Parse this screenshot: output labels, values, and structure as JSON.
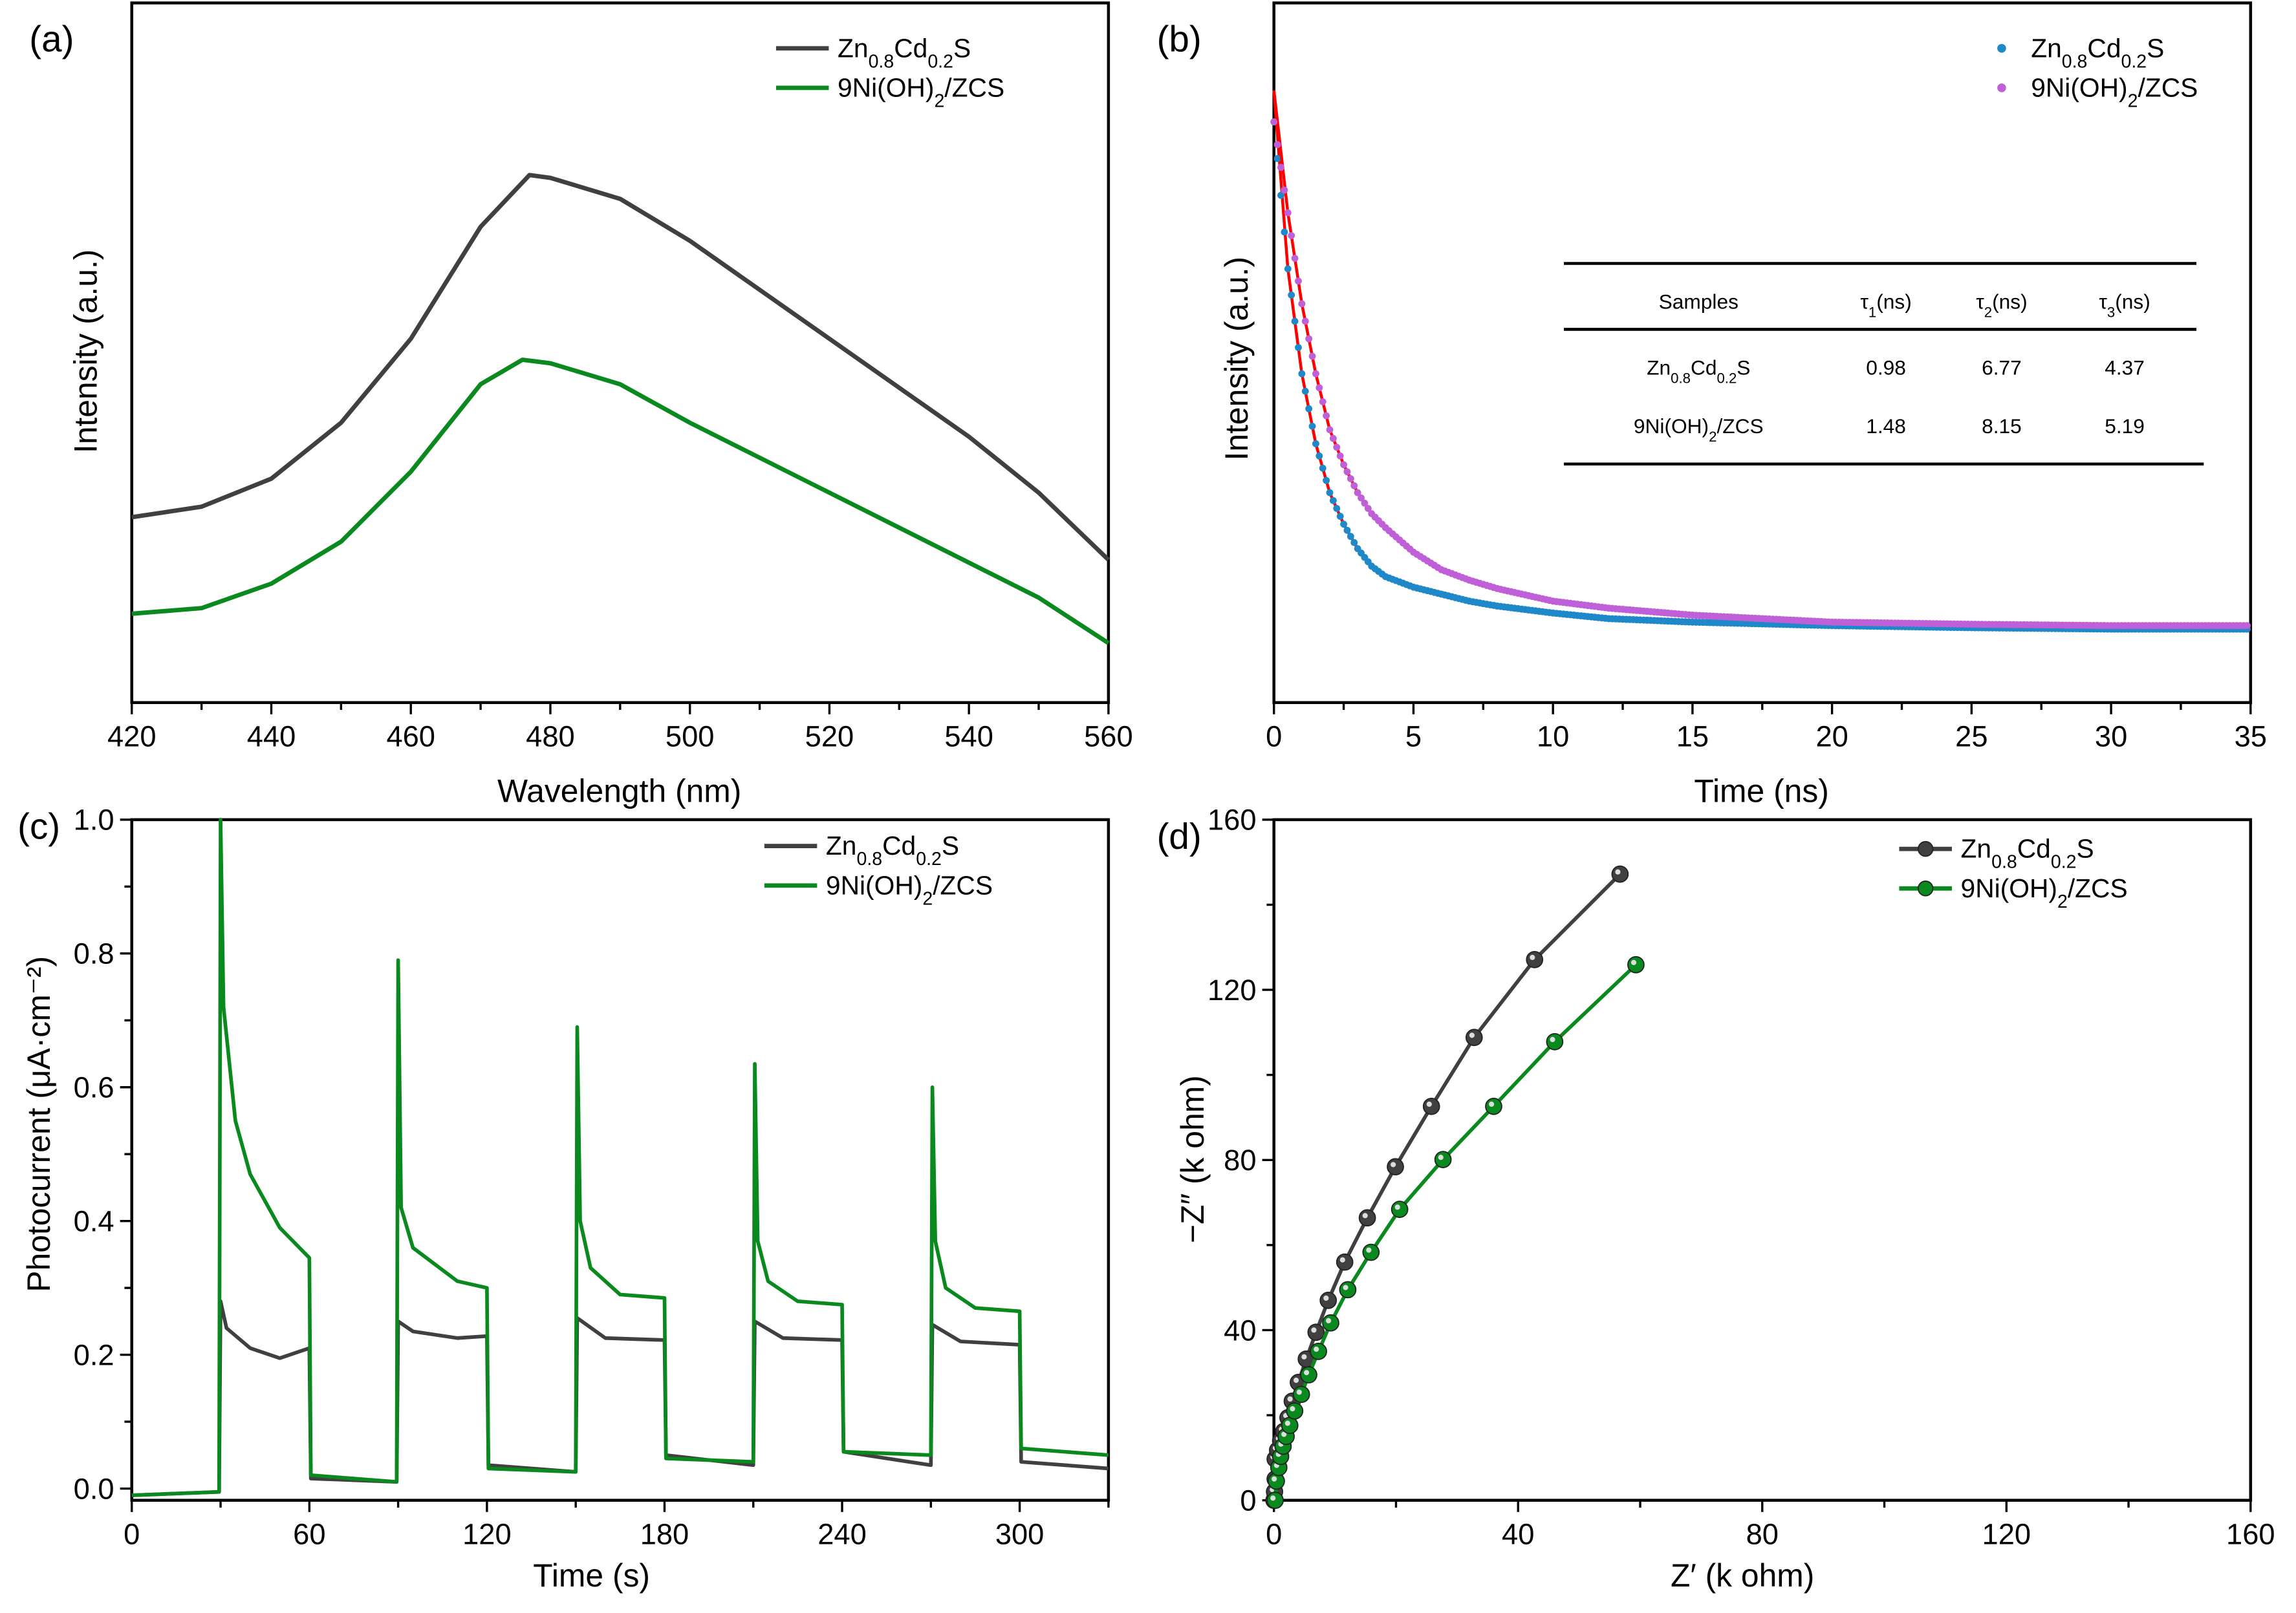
{
  "colors": {
    "zcs": "#404040",
    "ni": "#0a8a1e",
    "zcs_b": "#1e88c8",
    "ni_b": "#c060d8",
    "fit": "#ff0000"
  },
  "series_labels": {
    "zcs": [
      {
        "t": "Zn"
      },
      {
        "t": "0.8",
        "sub": true
      },
      {
        "t": "Cd"
      },
      {
        "t": "0.2",
        "sub": true
      },
      {
        "t": "S"
      }
    ],
    "ni": [
      {
        "t": "9Ni(OH)"
      },
      {
        "t": "2",
        "sub": true
      },
      {
        "t": "/ZCS"
      }
    ]
  },
  "chart_data": [
    {
      "panel": "(a)",
      "type": "line",
      "xlabel": "Wavelength (nm)",
      "ylabel": "Intensity (a.u.)",
      "xlim": [
        420,
        560
      ],
      "ylim": [
        0,
        1
      ],
      "xticks": [
        "420",
        "440",
        "460",
        "480",
        "500",
        "520",
        "540",
        "560"
      ],
      "xtick_values": [
        420,
        440,
        460,
        480,
        500,
        520,
        540,
        560
      ],
      "legend": "top-right",
      "series": [
        {
          "key": "zcs",
          "name": "Zn0.8Cd0.2S",
          "x": [
            420,
            430,
            440,
            450,
            460,
            470,
            477,
            480,
            490,
            500,
            510,
            520,
            530,
            540,
            550,
            560
          ],
          "y": [
            0.265,
            0.28,
            0.32,
            0.4,
            0.52,
            0.68,
            0.754,
            0.75,
            0.72,
            0.66,
            0.59,
            0.52,
            0.45,
            0.38,
            0.3,
            0.204
          ]
        },
        {
          "key": "ni",
          "name": "9Ni(OH)2/ZCS",
          "x": [
            420,
            430,
            440,
            450,
            460,
            470,
            476,
            480,
            490,
            500,
            510,
            520,
            530,
            540,
            550,
            560
          ],
          "y": [
            0.127,
            0.135,
            0.17,
            0.23,
            0.33,
            0.455,
            0.49,
            0.485,
            0.455,
            0.4,
            0.35,
            0.3,
            0.25,
            0.2,
            0.15,
            0.085
          ]
        }
      ]
    },
    {
      "panel": "(b)",
      "type": "scatter",
      "xlabel": "Time (ns)",
      "ylabel": "Intensity (a.u.)",
      "xlim": [
        0,
        35
      ],
      "ylim": [
        0,
        1
      ],
      "xticks": [
        "0",
        "5",
        "10",
        "15",
        "20",
        "25",
        "30",
        "35"
      ],
      "xtick_values": [
        0,
        5,
        10,
        15,
        20,
        25,
        30,
        35
      ],
      "legend": "top-right",
      "series": [
        {
          "key": "zcs",
          "name": "Zn0.8Cd0.2S",
          "x": [
            0,
            0.5,
            1,
            1.5,
            2,
            2.5,
            3,
            3.5,
            4,
            5,
            6,
            7,
            8,
            10,
            12,
            15,
            20,
            25,
            30,
            35
          ],
          "y": [
            0.83,
            0.62,
            0.47,
            0.37,
            0.3,
            0.255,
            0.22,
            0.195,
            0.18,
            0.165,
            0.155,
            0.145,
            0.138,
            0.128,
            0.12,
            0.115,
            0.11,
            0.107,
            0.105,
            0.105
          ]
        },
        {
          "key": "ni",
          "name": "9Ni(OH)2/ZCS",
          "x": [
            0,
            0.5,
            1,
            1.5,
            2,
            2.5,
            3,
            3.5,
            4,
            5,
            6,
            7,
            8,
            10,
            12,
            15,
            20,
            25,
            30,
            35
          ],
          "y": [
            0.83,
            0.7,
            0.57,
            0.47,
            0.39,
            0.34,
            0.3,
            0.27,
            0.25,
            0.215,
            0.19,
            0.175,
            0.163,
            0.145,
            0.135,
            0.125,
            0.115,
            0.112,
            0.11,
            0.11
          ]
        }
      ],
      "fit_start": 0.875,
      "table": {
        "headers": [
          [
            {
              "t": "Samples"
            }
          ],
          [
            {
              "t": "τ"
            },
            {
              "t": "1",
              "sub": true
            },
            {
              "t": "(ns)"
            }
          ],
          [
            {
              "t": "τ"
            },
            {
              "t": "2",
              "sub": true
            },
            {
              "t": "(ns)"
            }
          ],
          [
            {
              "t": "τ"
            },
            {
              "t": "3",
              "sub": true
            },
            {
              "t": "(ns)"
            }
          ]
        ],
        "rows": [
          {
            "sample": "zcs",
            "values": [
              "0.98",
              "6.77",
              "4.37"
            ]
          },
          {
            "sample": "ni",
            "values": [
              "1.48",
              "8.15",
              "5.19"
            ]
          }
        ]
      }
    },
    {
      "panel": "(c)",
      "type": "line",
      "xlabel": "Time (s)",
      "ylabel": "Photocurrent (μA·cm⁻²)",
      "xlim": [
        0,
        330
      ],
      "ylim": [
        -0.0175,
        1.0
      ],
      "xticks": [
        "0",
        "60",
        "120",
        "180",
        "240",
        "300"
      ],
      "xtick_values": [
        0,
        60,
        120,
        180,
        240,
        300
      ],
      "yticks": [
        "0.0",
        "0.2",
        "0.4",
        "0.6",
        "0.8",
        "1.0"
      ],
      "ytick_values": [
        0,
        0.2,
        0.4,
        0.6,
        0.8,
        1.0
      ],
      "legend": "top-right",
      "series": [
        {
          "key": "zcs",
          "name": "Zn0.8Cd0.2S",
          "points": [
            [
              0,
              -0.01
            ],
            [
              29.5,
              -0.005
            ],
            [
              30,
              0.28
            ],
            [
              32,
              0.24
            ],
            [
              40,
              0.21
            ],
            [
              50,
              0.195
            ],
            [
              60,
              0.21
            ],
            [
              60.5,
              0.015
            ],
            [
              89.5,
              0.01
            ],
            [
              90,
              0.25
            ],
            [
              95,
              0.235
            ],
            [
              110,
              0.225
            ],
            [
              120,
              0.228
            ],
            [
              120.5,
              0.035
            ],
            [
              150,
              0.025
            ],
            [
              150.5,
              0.255
            ],
            [
              160,
              0.225
            ],
            [
              180,
              0.222
            ],
            [
              180.5,
              0.05
            ],
            [
              210,
              0.035
            ],
            [
              210.5,
              0.25
            ],
            [
              220,
              0.225
            ],
            [
              240,
              0.222
            ],
            [
              240.5,
              0.055
            ],
            [
              270,
              0.035
            ],
            [
              270.5,
              0.245
            ],
            [
              280,
              0.22
            ],
            [
              300,
              0.215
            ],
            [
              300.5,
              0.04
            ],
            [
              330,
              0.03
            ]
          ]
        },
        {
          "key": "ni",
          "name": "9Ni(OH)2/ZCS",
          "points": [
            [
              0,
              -0.01
            ],
            [
              29.5,
              -0.005
            ],
            [
              30,
              1.0
            ],
            [
              31,
              0.72
            ],
            [
              35,
              0.55
            ],
            [
              40,
              0.47
            ],
            [
              50,
              0.39
            ],
            [
              60,
              0.345
            ],
            [
              60.5,
              0.02
            ],
            [
              89.5,
              0.01
            ],
            [
              90,
              0.79
            ],
            [
              91,
              0.42
            ],
            [
              95,
              0.36
            ],
            [
              110,
              0.31
            ],
            [
              120,
              0.3
            ],
            [
              120.5,
              0.03
            ],
            [
              150,
              0.025
            ],
            [
              150.5,
              0.69
            ],
            [
              151.5,
              0.4
            ],
            [
              155,
              0.33
            ],
            [
              165,
              0.29
            ],
            [
              180,
              0.285
            ],
            [
              180.5,
              0.045
            ],
            [
              210,
              0.04
            ],
            [
              210.5,
              0.635
            ],
            [
              211.5,
              0.37
            ],
            [
              215,
              0.31
            ],
            [
              225,
              0.28
            ],
            [
              240,
              0.275
            ],
            [
              240.5,
              0.055
            ],
            [
              270,
              0.05
            ],
            [
              270.5,
              0.6
            ],
            [
              271.5,
              0.37
            ],
            [
              275,
              0.3
            ],
            [
              285,
              0.27
            ],
            [
              300,
              0.265
            ],
            [
              300.5,
              0.06
            ],
            [
              330,
              0.05
            ]
          ]
        }
      ]
    },
    {
      "panel": "(d)",
      "type": "line",
      "xlabel": "Z′ (k ohm)",
      "ylabel": "−Z″ (k ohm)",
      "xlim": [
        0,
        160
      ],
      "ylim": [
        0,
        160
      ],
      "xticks": [
        "0",
        "40",
        "80",
        "120",
        "160"
      ],
      "xtick_values": [
        0,
        40,
        80,
        120,
        160
      ],
      "yticks": [
        "0",
        "40",
        "80",
        "120",
        "160"
      ],
      "ytick_values": [
        0,
        40,
        80,
        120,
        160
      ],
      "legend": "top-right",
      "series": [
        {
          "key": "zcs",
          "name": "Zn0.8Cd0.2S",
          "points": [
            [
              0,
              0
            ],
            [
              0.1,
              2
            ],
            [
              0.2,
              5
            ],
            [
              0.2,
              9.7
            ],
            [
              0.6,
              11.8
            ],
            [
              1.1,
              14.0
            ],
            [
              1.6,
              16.2
            ],
            [
              2.3,
              19.4
            ],
            [
              3.0,
              23.3
            ],
            [
              4.0,
              27.7
            ],
            [
              5.3,
              33.2
            ],
            [
              6.9,
              39.5
            ],
            [
              8.9,
              47.0
            ],
            [
              11.6,
              56.0
            ],
            [
              15.3,
              66.4
            ],
            [
              19.9,
              78.4
            ],
            [
              25.8,
              92.6
            ],
            [
              32.8,
              108.8
            ],
            [
              42.7,
              127.1
            ],
            [
              56.7,
              147.2
            ]
          ]
        },
        {
          "key": "ni",
          "name": "9Ni(OH)2/ZCS",
          "points": [
            [
              0.2,
              0
            ],
            [
              0.4,
              4.5
            ],
            [
              0.8,
              7.7
            ],
            [
              1.1,
              10.3
            ],
            [
              1.5,
              12.7
            ],
            [
              2.0,
              15.0
            ],
            [
              2.6,
              17.6
            ],
            [
              3.4,
              21.0
            ],
            [
              4.5,
              24.9
            ],
            [
              5.7,
              29.5
            ],
            [
              7.3,
              35.0
            ],
            [
              9.3,
              41.7
            ],
            [
              12.1,
              49.5
            ],
            [
              15.9,
              58.3
            ],
            [
              20.6,
              68.4
            ],
            [
              27.7,
              80.1
            ],
            [
              36.0,
              92.6
            ],
            [
              46.0,
              107.8
            ],
            [
              59.3,
              125.9
            ]
          ]
        }
      ]
    }
  ]
}
